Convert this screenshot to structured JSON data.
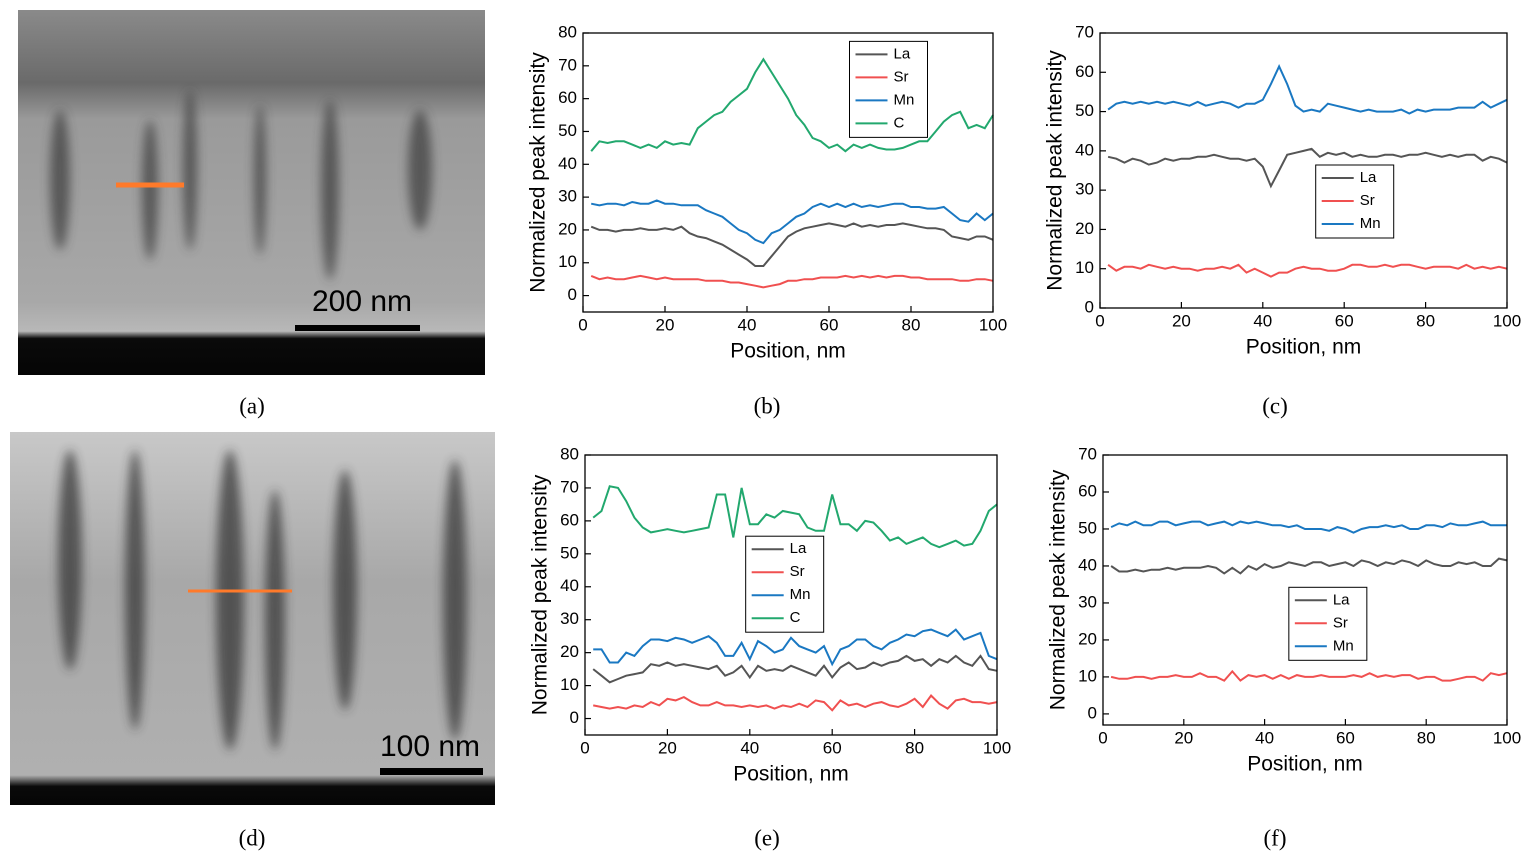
{
  "images": [
    {
      "panel_label": "(a)",
      "scale_label": "200 nm"
    },
    {
      "panel_label": "(d)",
      "scale_label": "100 nm"
    }
  ],
  "chart_data": [
    {
      "type": "line",
      "panel_label": "(b)",
      "x_label": "Position, nm",
      "y_label": "Normalized peak intensity",
      "xlim": [
        0,
        100
      ],
      "xticks": [
        0,
        20,
        40,
        60,
        80,
        100
      ],
      "ylim": [
        -5,
        80
      ],
      "yticks": [
        0,
        10,
        20,
        30,
        40,
        50,
        60,
        70,
        80
      ],
      "legend": "upper right",
      "x": [
        2,
        4,
        6,
        8,
        10,
        12,
        14,
        16,
        18,
        20,
        22,
        24,
        26,
        28,
        30,
        32,
        34,
        36,
        38,
        40,
        42,
        44,
        46,
        48,
        50,
        52,
        54,
        56,
        58,
        60,
        62,
        64,
        66,
        68,
        70,
        72,
        74,
        76,
        78,
        80,
        82,
        84,
        86,
        88,
        90,
        92,
        94,
        96,
        98,
        100
      ],
      "series": [
        {
          "name": "La",
          "color": "#555555",
          "values": [
            21,
            20,
            20,
            19.5,
            20,
            20,
            20.5,
            20,
            20,
            20.5,
            20,
            21,
            19,
            18,
            17.5,
            16.5,
            15.5,
            14,
            12.5,
            11,
            9,
            9,
            12,
            15,
            18,
            19.5,
            20.5,
            21,
            21.5,
            22,
            21.5,
            21,
            22,
            21,
            21.5,
            21,
            21.5,
            21.5,
            22,
            21.5,
            21,
            20.5,
            20.5,
            20,
            18,
            17.5,
            17,
            18,
            18,
            17
          ]
        },
        {
          "name": "Sr",
          "color": "#f05050",
          "values": [
            6,
            5,
            5.5,
            5,
            5,
            5.5,
            6,
            5.5,
            5,
            5.5,
            5,
            5,
            5,
            5,
            4.5,
            4.5,
            4.5,
            4,
            4,
            3.5,
            3,
            2.5,
            3,
            3.5,
            4.5,
            4.5,
            5,
            5,
            5.5,
            5.5,
            5.5,
            6,
            5.5,
            6,
            5.5,
            6,
            5.5,
            6,
            6,
            5.5,
            5.5,
            5,
            5,
            5,
            5,
            4.5,
            4.5,
            5,
            5,
            4.5
          ]
        },
        {
          "name": "Mn",
          "color": "#1a78c2",
          "values": [
            28,
            27.5,
            28,
            28,
            27.5,
            28.5,
            28,
            28,
            29,
            28,
            28,
            27.5,
            27.5,
            27.5,
            26,
            25,
            24,
            22,
            20,
            19,
            17,
            16,
            19,
            20,
            22,
            24,
            25,
            27,
            28,
            27,
            28,
            27,
            28,
            27,
            27.5,
            27,
            27.5,
            28,
            28,
            27,
            27,
            26.5,
            26.5,
            27,
            25,
            23,
            22.5,
            25,
            23,
            25
          ]
        },
        {
          "name": "C",
          "color": "#22a86e",
          "values": [
            44,
            47,
            46.5,
            47,
            47,
            46,
            45,
            46,
            45,
            47,
            46,
            46.5,
            46,
            51,
            53,
            55,
            56,
            59,
            61,
            63,
            68,
            72,
            68,
            64,
            60,
            55,
            52,
            48,
            47,
            45,
            46,
            44,
            46,
            45,
            46,
            45,
            44.5,
            44.5,
            45,
            46,
            47,
            47,
            50,
            53,
            55,
            56,
            51,
            52,
            51,
            55
          ]
        }
      ]
    },
    {
      "type": "line",
      "panel_label": "(c)",
      "x_label": "Position, nm",
      "y_label": "Normalized peak intensity",
      "xlim": [
        0,
        100
      ],
      "xticks": [
        0,
        20,
        40,
        60,
        80,
        100
      ],
      "ylim": [
        0,
        70
      ],
      "yticks": [
        0,
        10,
        20,
        30,
        40,
        50,
        60,
        70
      ],
      "legend": "center right",
      "x": [
        2,
        4,
        6,
        8,
        10,
        12,
        14,
        16,
        18,
        20,
        22,
        24,
        26,
        28,
        30,
        32,
        34,
        36,
        38,
        40,
        42,
        44,
        46,
        48,
        50,
        52,
        54,
        56,
        58,
        60,
        62,
        64,
        66,
        68,
        70,
        72,
        74,
        76,
        78,
        80,
        82,
        84,
        86,
        88,
        90,
        92,
        94,
        96,
        98,
        100
      ],
      "series": [
        {
          "name": "La",
          "color": "#555555",
          "values": [
            38.5,
            38,
            37,
            38,
            37.5,
            36.5,
            37,
            38,
            37.5,
            38,
            38,
            38.5,
            38.5,
            39,
            38.5,
            38,
            38,
            37.5,
            38,
            36,
            31,
            35,
            39,
            39.5,
            40,
            40.5,
            38.5,
            39.5,
            39,
            39.5,
            38.5,
            39,
            38.5,
            38.5,
            39,
            39,
            38.5,
            39,
            39,
            39.5,
            39,
            38.5,
            39,
            38.5,
            39,
            39,
            37.5,
            38.5,
            38,
            37
          ]
        },
        {
          "name": "Sr",
          "color": "#f05050",
          "values": [
            11,
            9.5,
            10.5,
            10.5,
            10,
            11,
            10.5,
            10,
            10.5,
            10,
            10,
            9.5,
            10,
            10,
            10.5,
            10,
            11,
            9,
            10,
            9,
            8,
            9,
            9,
            10,
            10.5,
            10,
            10,
            9.5,
            9.5,
            10,
            11,
            11,
            10.5,
            10.5,
            11,
            10.5,
            11,
            11,
            10.5,
            10,
            10.5,
            10.5,
            10.5,
            10,
            11,
            10,
            10.5,
            10,
            10.5,
            10
          ]
        },
        {
          "name": "Mn",
          "color": "#1a78c2",
          "values": [
            50.5,
            52,
            52.5,
            52,
            52.5,
            52,
            52.5,
            52,
            52.5,
            52,
            51.5,
            52.5,
            51.5,
            52,
            52.5,
            52,
            51,
            52,
            52,
            53,
            57,
            61.5,
            57,
            51.5,
            50,
            50.5,
            50,
            52,
            51.5,
            51,
            50.5,
            50,
            50.5,
            50,
            50,
            50,
            50.5,
            49.5,
            50.5,
            50,
            50.5,
            50.5,
            50.5,
            51,
            51,
            51,
            52.5,
            51,
            52,
            53
          ]
        }
      ]
    },
    {
      "type": "line",
      "panel_label": "(e)",
      "x_label": "Position, nm",
      "y_label": "Normalized peak intensity",
      "xlim": [
        0,
        100
      ],
      "xticks": [
        0,
        20,
        40,
        60,
        80,
        100
      ],
      "ylim": [
        -5,
        80
      ],
      "yticks": [
        0,
        10,
        20,
        30,
        40,
        50,
        60,
        70,
        80
      ],
      "legend": "center",
      "x": [
        2,
        4,
        6,
        8,
        10,
        12,
        14,
        16,
        18,
        20,
        22,
        24,
        26,
        28,
        30,
        32,
        34,
        36,
        38,
        40,
        42,
        44,
        46,
        48,
        50,
        52,
        54,
        56,
        58,
        60,
        62,
        64,
        66,
        68,
        70,
        72,
        74,
        76,
        78,
        80,
        82,
        84,
        86,
        88,
        90,
        92,
        94,
        96,
        98,
        100
      ],
      "series": [
        {
          "name": "La",
          "color": "#555555",
          "values": [
            15,
            13,
            11,
            12,
            13,
            13.5,
            14,
            16.5,
            16,
            17,
            16,
            16.5,
            16,
            15.5,
            15,
            16,
            13,
            14,
            16,
            12.5,
            16,
            14.5,
            15,
            14.5,
            16,
            15,
            14,
            13,
            16,
            12.5,
            15.5,
            17,
            15,
            15.5,
            17,
            16,
            17,
            17.5,
            19,
            17.5,
            18,
            16,
            18,
            17,
            19,
            17,
            16,
            19,
            15,
            14.5
          ]
        },
        {
          "name": "Sr",
          "color": "#f05050",
          "values": [
            4,
            3.5,
            3,
            3.5,
            3,
            4,
            3.5,
            5,
            4,
            6,
            5.5,
            6.5,
            5,
            4,
            4,
            5,
            4,
            4,
            3.5,
            4,
            3.5,
            4,
            3,
            4,
            3.5,
            4.5,
            3.5,
            5.5,
            5,
            2.5,
            5.5,
            4,
            4.5,
            3.5,
            4.5,
            5,
            4,
            3.5,
            4.5,
            6,
            3.5,
            7,
            4.5,
            3,
            5.5,
            6,
            5,
            5,
            4.5,
            5
          ]
        },
        {
          "name": "Mn",
          "color": "#1a78c2",
          "values": [
            21,
            21,
            17,
            17,
            20,
            19,
            22,
            24,
            24,
            23.5,
            24.5,
            24,
            23,
            24,
            25,
            23,
            19,
            19,
            23,
            18,
            23.5,
            22,
            20,
            21,
            24.5,
            22,
            21,
            20,
            22,
            16.5,
            21,
            22,
            24,
            24,
            22,
            21,
            23,
            24,
            25.5,
            25,
            26.5,
            27,
            26,
            25,
            27,
            24,
            25,
            26,
            19,
            18
          ]
        },
        {
          "name": "C",
          "color": "#22a86e",
          "values": [
            61,
            63,
            70.5,
            70,
            66,
            61,
            58,
            56.5,
            57,
            57.5,
            57,
            56.5,
            57,
            57.5,
            58,
            68,
            68,
            55,
            70,
            59,
            59,
            62,
            61,
            63,
            62.5,
            62,
            58,
            57,
            57,
            68,
            59,
            59,
            57,
            60,
            59.5,
            57,
            54,
            55,
            53,
            54,
            55,
            53,
            52,
            53,
            54,
            52.5,
            53,
            57,
            63,
            65
          ]
        }
      ]
    },
    {
      "type": "line",
      "panel_label": "(f)",
      "x_label": "Position, nm",
      "y_label": "Normalized peak intensity",
      "xlim": [
        0,
        100
      ],
      "xticks": [
        0,
        20,
        40,
        60,
        80,
        100
      ],
      "ylim": [
        -3,
        70
      ],
      "yticks": [
        0,
        10,
        20,
        30,
        40,
        50,
        60,
        70
      ],
      "legend": "lower center",
      "x": [
        2,
        4,
        6,
        8,
        10,
        12,
        14,
        16,
        18,
        20,
        22,
        24,
        26,
        28,
        30,
        32,
        34,
        36,
        38,
        40,
        42,
        44,
        46,
        48,
        50,
        52,
        54,
        56,
        58,
        60,
        62,
        64,
        66,
        68,
        70,
        72,
        74,
        76,
        78,
        80,
        82,
        84,
        86,
        88,
        90,
        92,
        94,
        96,
        98,
        100
      ],
      "series": [
        {
          "name": "La",
          "color": "#555555",
          "values": [
            40,
            38.5,
            38.5,
            39,
            38.5,
            39,
            39,
            39.5,
            39,
            39.5,
            39.5,
            39.5,
            40,
            39.5,
            38,
            39.5,
            38,
            40,
            39,
            40.5,
            39.5,
            40,
            41,
            40.5,
            40,
            41,
            41,
            40,
            40.5,
            41,
            40,
            41.5,
            41,
            40,
            41,
            40.5,
            41.5,
            41,
            40,
            41.5,
            40.5,
            40,
            40,
            41,
            40.5,
            41,
            40,
            40,
            42,
            41.5
          ]
        },
        {
          "name": "Sr",
          "color": "#f05050",
          "values": [
            10,
            9.5,
            9.5,
            10,
            10,
            9.5,
            10,
            10,
            10.5,
            10,
            10,
            11,
            10,
            10,
            9,
            11.5,
            9,
            10.5,
            10,
            10.5,
            9.5,
            10.5,
            9.5,
            10.5,
            10,
            10,
            10.5,
            10,
            10,
            10,
            10.5,
            10,
            11,
            10,
            10.5,
            10,
            10.5,
            10.5,
            9.5,
            10,
            10,
            9,
            9,
            9.5,
            10,
            10,
            9,
            11,
            10.5,
            11
          ]
        },
        {
          "name": "Mn",
          "color": "#1a78c2",
          "values": [
            50.5,
            51.5,
            51,
            52,
            51,
            51,
            52,
            52,
            51,
            51.5,
            52,
            52,
            51,
            51.5,
            52,
            51,
            52,
            51.5,
            52,
            51.5,
            51,
            51,
            50.5,
            51,
            50,
            50,
            50,
            49.5,
            50.5,
            50,
            49,
            50,
            50.5,
            50.5,
            51,
            50.5,
            51,
            50,
            50,
            51,
            51,
            50.5,
            51.5,
            51,
            51,
            51.5,
            52,
            51,
            51,
            51
          ]
        }
      ]
    }
  ]
}
